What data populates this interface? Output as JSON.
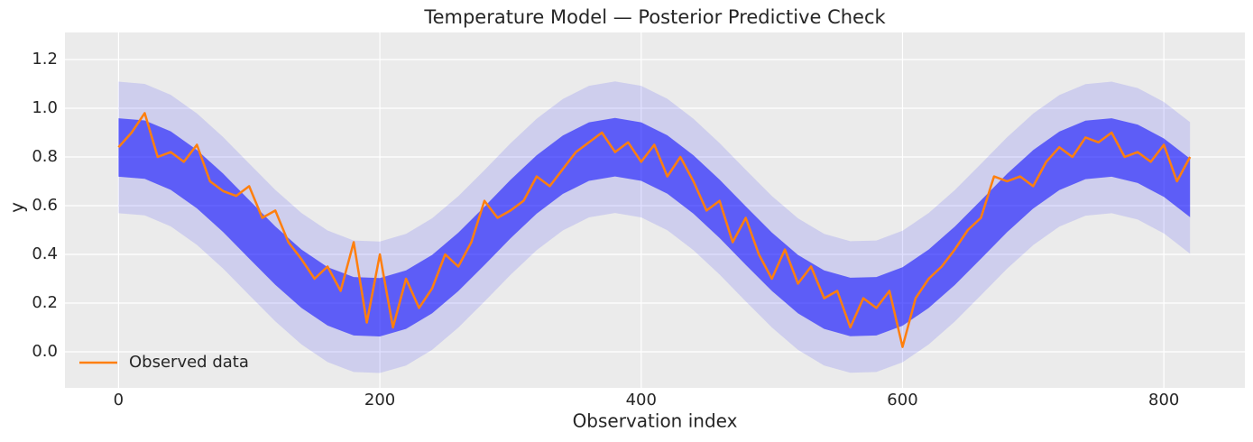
{
  "chart_data": {
    "type": "line",
    "title": "Temperature Model — Posterior Predictive Check",
    "xlabel": "Observation index",
    "ylabel": "y",
    "xlim": [
      -41,
      862
    ],
    "ylim": [
      -0.148,
      1.311
    ],
    "xticks": [
      0,
      200,
      400,
      600,
      800
    ],
    "yticks": [
      {
        "value": 0,
        "label": "0.0"
      },
      0.2,
      0.4,
      0.6,
      0.8,
      {
        "value": 1,
        "label": "1.0"
      },
      1.2
    ],
    "grid": true,
    "background": "#ebebeb",
    "legend_position": "lower left",
    "band_x": [
      0,
      20,
      40,
      60,
      80,
      100,
      120,
      140,
      160,
      180,
      200,
      220,
      240,
      260,
      280,
      300,
      320,
      340,
      360,
      380,
      400,
      420,
      440,
      460,
      480,
      500,
      520,
      540,
      560,
      580,
      600,
      620,
      640,
      660,
      680,
      700,
      720,
      740,
      760,
      780,
      800,
      820
    ],
    "bands": [
      {
        "color": "#0000ff",
        "opacity": 0.12,
        "lower": [
          0.569,
          0.56,
          0.515,
          0.439,
          0.342,
          0.233,
          0.125,
          0.03,
          -0.042,
          -0.083,
          -0.087,
          -0.056,
          0.008,
          0.099,
          0.206,
          0.316,
          0.417,
          0.498,
          0.552,
          0.57,
          0.552,
          0.499,
          0.417,
          0.317,
          0.207,
          0.1,
          0.008,
          -0.056,
          -0.086,
          -0.083,
          -0.043,
          0.03,
          0.124,
          0.232,
          0.341,
          0.438,
          0.514,
          0.559,
          0.569,
          0.543,
          0.486,
          0.403
        ],
        "upper": [
          1.109,
          1.1,
          1.055,
          0.979,
          0.882,
          0.773,
          0.665,
          0.57,
          0.498,
          0.457,
          0.453,
          0.484,
          0.548,
          0.639,
          0.746,
          0.856,
          0.957,
          1.038,
          1.092,
          1.11,
          1.092,
          1.039,
          0.957,
          0.857,
          0.747,
          0.64,
          0.548,
          0.484,
          0.454,
          0.457,
          0.497,
          0.57,
          0.664,
          0.772,
          0.881,
          0.978,
          1.054,
          1.099,
          1.109,
          1.083,
          1.026,
          0.943
        ]
      },
      {
        "color": "#0000ff",
        "opacity": 0.55,
        "lower": [
          0.719,
          0.71,
          0.665,
          0.589,
          0.492,
          0.383,
          0.275,
          0.18,
          0.108,
          0.067,
          0.063,
          0.094,
          0.158,
          0.249,
          0.356,
          0.466,
          0.567,
          0.648,
          0.702,
          0.72,
          0.702,
          0.649,
          0.567,
          0.467,
          0.357,
          0.25,
          0.158,
          0.094,
          0.064,
          0.067,
          0.107,
          0.18,
          0.274,
          0.382,
          0.491,
          0.588,
          0.664,
          0.709,
          0.719,
          0.693,
          0.636,
          0.553
        ],
        "upper": [
          0.959,
          0.95,
          0.905,
          0.829,
          0.732,
          0.623,
          0.515,
          0.42,
          0.348,
          0.307,
          0.303,
          0.334,
          0.398,
          0.489,
          0.596,
          0.706,
          0.807,
          0.888,
          0.942,
          0.96,
          0.942,
          0.889,
          0.807,
          0.707,
          0.597,
          0.49,
          0.398,
          0.334,
          0.304,
          0.307,
          0.347,
          0.42,
          0.514,
          0.622,
          0.731,
          0.828,
          0.904,
          0.949,
          0.959,
          0.933,
          0.876,
          0.793
        ]
      }
    ],
    "x": [
      0,
      10,
      20,
      30,
      40,
      50,
      60,
      70,
      80,
      90,
      100,
      110,
      120,
      130,
      140,
      150,
      160,
      170,
      180,
      190,
      200,
      210,
      220,
      230,
      240,
      250,
      260,
      270,
      280,
      290,
      300,
      310,
      320,
      330,
      340,
      350,
      360,
      370,
      380,
      390,
      400,
      410,
      420,
      430,
      440,
      450,
      460,
      470,
      480,
      490,
      500,
      510,
      520,
      530,
      540,
      550,
      560,
      570,
      580,
      590,
      600,
      610,
      620,
      630,
      640,
      650,
      660,
      670,
      680,
      690,
      700,
      710,
      720,
      730,
      740,
      750,
      760,
      770,
      780,
      790,
      800,
      810,
      820
    ],
    "series": [
      {
        "name": "Observed data",
        "color": "#ff7f0e",
        "values": [
          0.84,
          0.9,
          0.98,
          0.8,
          0.82,
          0.78,
          0.85,
          0.7,
          0.66,
          0.64,
          0.68,
          0.55,
          0.58,
          0.45,
          0.38,
          0.3,
          0.35,
          0.25,
          0.45,
          0.12,
          0.4,
          0.1,
          0.3,
          0.18,
          0.26,
          0.4,
          0.35,
          0.45,
          0.62,
          0.55,
          0.58,
          0.62,
          0.72,
          0.68,
          0.75,
          0.82,
          0.86,
          0.9,
          0.82,
          0.86,
          0.78,
          0.85,
          0.72,
          0.8,
          0.7,
          0.58,
          0.62,
          0.45,
          0.55,
          0.4,
          0.3,
          0.42,
          0.28,
          0.35,
          0.22,
          0.25,
          0.1,
          0.22,
          0.18,
          0.25,
          0.02,
          0.22,
          0.3,
          0.35,
          0.42,
          0.5,
          0.55,
          0.72,
          0.7,
          0.72,
          0.68,
          0.78,
          0.84,
          0.8,
          0.88,
          0.86,
          0.9,
          0.8,
          0.82,
          0.78,
          0.85,
          0.7,
          0.8
        ]
      }
    ]
  }
}
